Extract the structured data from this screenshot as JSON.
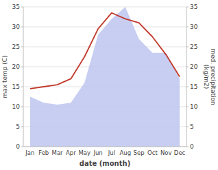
{
  "chart_data": {
    "type": "line",
    "xlabel": "date (month)",
    "ylabel": "max temp (C)",
    "y2label": "med. precipitation\n(kg/m2)",
    "categories": [
      "Jan",
      "Feb",
      "Mar",
      "Apr",
      "May",
      "Jun",
      "Jul",
      "Aug",
      "Sep",
      "Oct",
      "Nov",
      "Dec"
    ],
    "series": [
      {
        "type": "area",
        "axis": "y2",
        "color": "#bdc5ee",
        "values": [
          12.5,
          11.0,
          10.5,
          11.0,
          16.0,
          28.0,
          32.0,
          35.0,
          27.0,
          23.5,
          23.5,
          17.0
        ]
      },
      {
        "type": "line",
        "color": "#c0392b",
        "values": [
          14.5,
          15.0,
          15.5,
          17.0,
          22.5,
          29.5,
          33.5,
          32.0,
          31.0,
          27.5,
          23.0,
          17.5
        ]
      }
    ],
    "ylim": [
      0,
      35
    ],
    "yticks": [
      0,
      5,
      10,
      15,
      20,
      25,
      30,
      35
    ],
    "y2lim": [
      0,
      35
    ],
    "y2ticks": [
      0,
      5,
      10,
      15,
      20,
      25,
      30,
      35
    ],
    "grid": true
  }
}
